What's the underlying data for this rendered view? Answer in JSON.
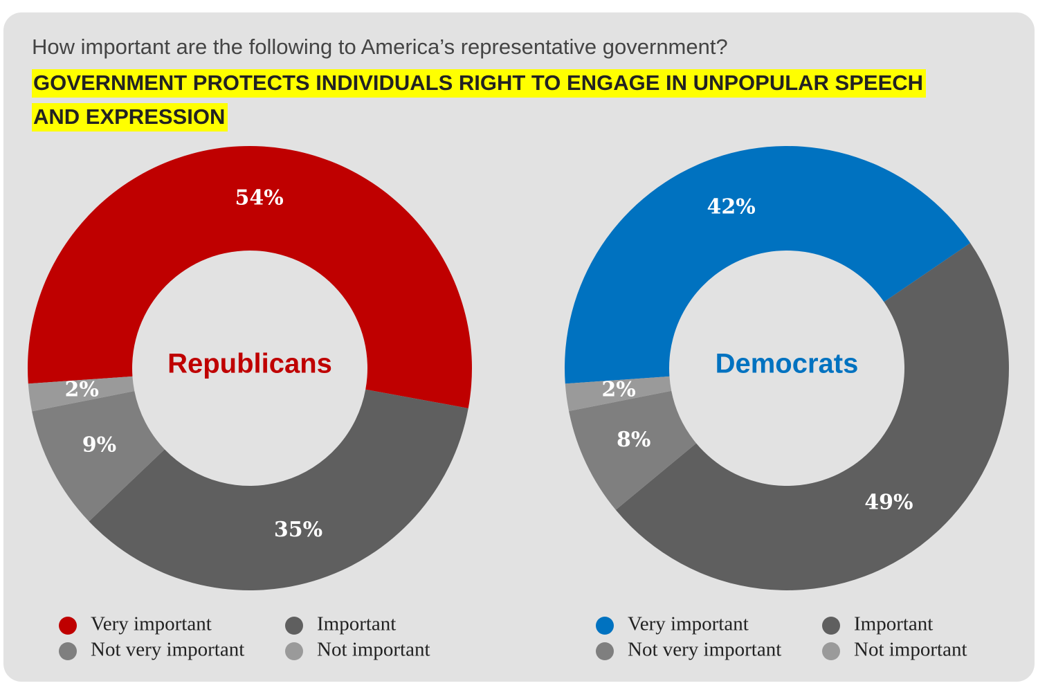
{
  "header": {
    "question": "How important are the following to America’s representative government?",
    "title": "GOVERNMENT PROTECTS INDIVIDUALS RIGHT TO ENGAGE IN UNPOPULAR SPEECH AND EXPRESSION"
  },
  "chart_data": [
    {
      "type": "donut",
      "title": "Republicans",
      "title_color": "#bf0000",
      "categories": [
        "Very important",
        "Important",
        "Not very important",
        "Not important"
      ],
      "values": [
        54,
        35,
        9,
        2
      ],
      "value_labels": [
        "54%",
        "35%",
        "9%",
        "2%"
      ],
      "colors": [
        "#bf0000",
        "#5f5f5f",
        "#7f7f7f",
        "#9a9a9a"
      ]
    },
    {
      "type": "donut",
      "title": "Democrats",
      "title_color": "#0072c0",
      "categories": [
        "Very important",
        "Important",
        "Not very important",
        "Not important"
      ],
      "values": [
        42,
        49,
        8,
        2
      ],
      "value_labels": [
        "42%",
        "49%",
        "8%",
        "2%"
      ],
      "colors": [
        "#0072c0",
        "#5f5f5f",
        "#7f7f7f",
        "#9a9a9a"
      ]
    }
  ]
}
